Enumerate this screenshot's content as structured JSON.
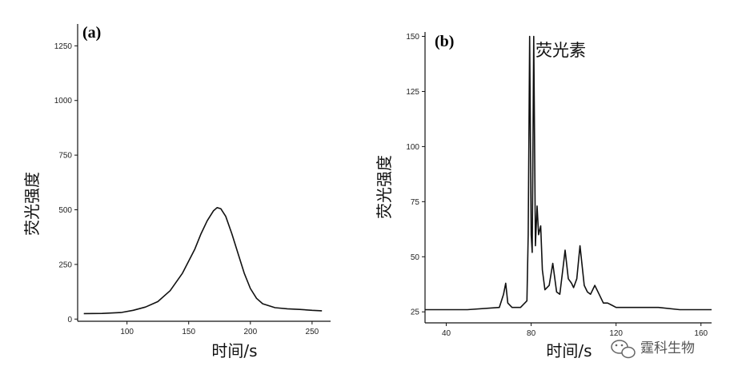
{
  "chart_data": [
    {
      "type": "line",
      "panel_label": "(a)",
      "xlabel": "时间/s",
      "ylabel": "荧光强度",
      "xlim": [
        60,
        265
      ],
      "ylim": [
        -10,
        1350
      ],
      "x_ticks": [
        100,
        150,
        200,
        250
      ],
      "y_ticks": [
        0,
        250,
        500,
        750,
        1000,
        1250
      ],
      "grid": false,
      "series": [
        {
          "x": [
            65,
            80,
            95,
            105,
            115,
            125,
            135,
            145,
            155,
            160,
            165,
            170,
            173,
            176,
            180,
            185,
            190,
            195,
            200,
            205,
            210,
            220,
            230,
            240,
            250,
            258
          ],
          "values": [
            25,
            26,
            30,
            40,
            55,
            80,
            130,
            210,
            320,
            390,
            450,
            495,
            510,
            505,
            470,
            390,
            300,
            210,
            140,
            95,
            70,
            52,
            47,
            44,
            40,
            38
          ]
        }
      ]
    },
    {
      "type": "line",
      "panel_label": "(b)",
      "xlabel": "时间/s",
      "ylabel": "荧光强度",
      "xlim": [
        30,
        165
      ],
      "ylim": [
        20,
        152
      ],
      "x_ticks": [
        40,
        80,
        120,
        160
      ],
      "y_ticks": [
        25,
        50,
        75,
        100,
        125,
        150
      ],
      "grid": false,
      "annotation": "荧光素",
      "series": [
        {
          "x": [
            30,
            50,
            65,
            67,
            68,
            69,
            71,
            75,
            78,
            78.6,
            79.3,
            80,
            80.5,
            81.2,
            82,
            82.8,
            83.5,
            84.5,
            85.3,
            86.5,
            88.5,
            90.2,
            92,
            93.5,
            95,
            96,
            97.5,
            99,
            100,
            101.5,
            103,
            105,
            106.5,
            108,
            110,
            112,
            114,
            116,
            118,
            120,
            125,
            130,
            140,
            150,
            165
          ],
          "values": [
            26,
            26,
            27,
            33,
            38,
            29,
            27,
            27,
            30,
            60,
            150,
            60,
            52,
            150,
            55,
            73,
            60,
            64,
            44,
            35,
            37,
            47,
            34,
            33,
            45,
            53,
            40,
            38,
            36,
            40,
            55,
            37,
            34,
            33,
            37,
            33,
            29,
            29,
            28,
            27,
            27,
            27,
            27,
            26,
            26
          ]
        }
      ]
    }
  ],
  "watermark": "霆科生物"
}
